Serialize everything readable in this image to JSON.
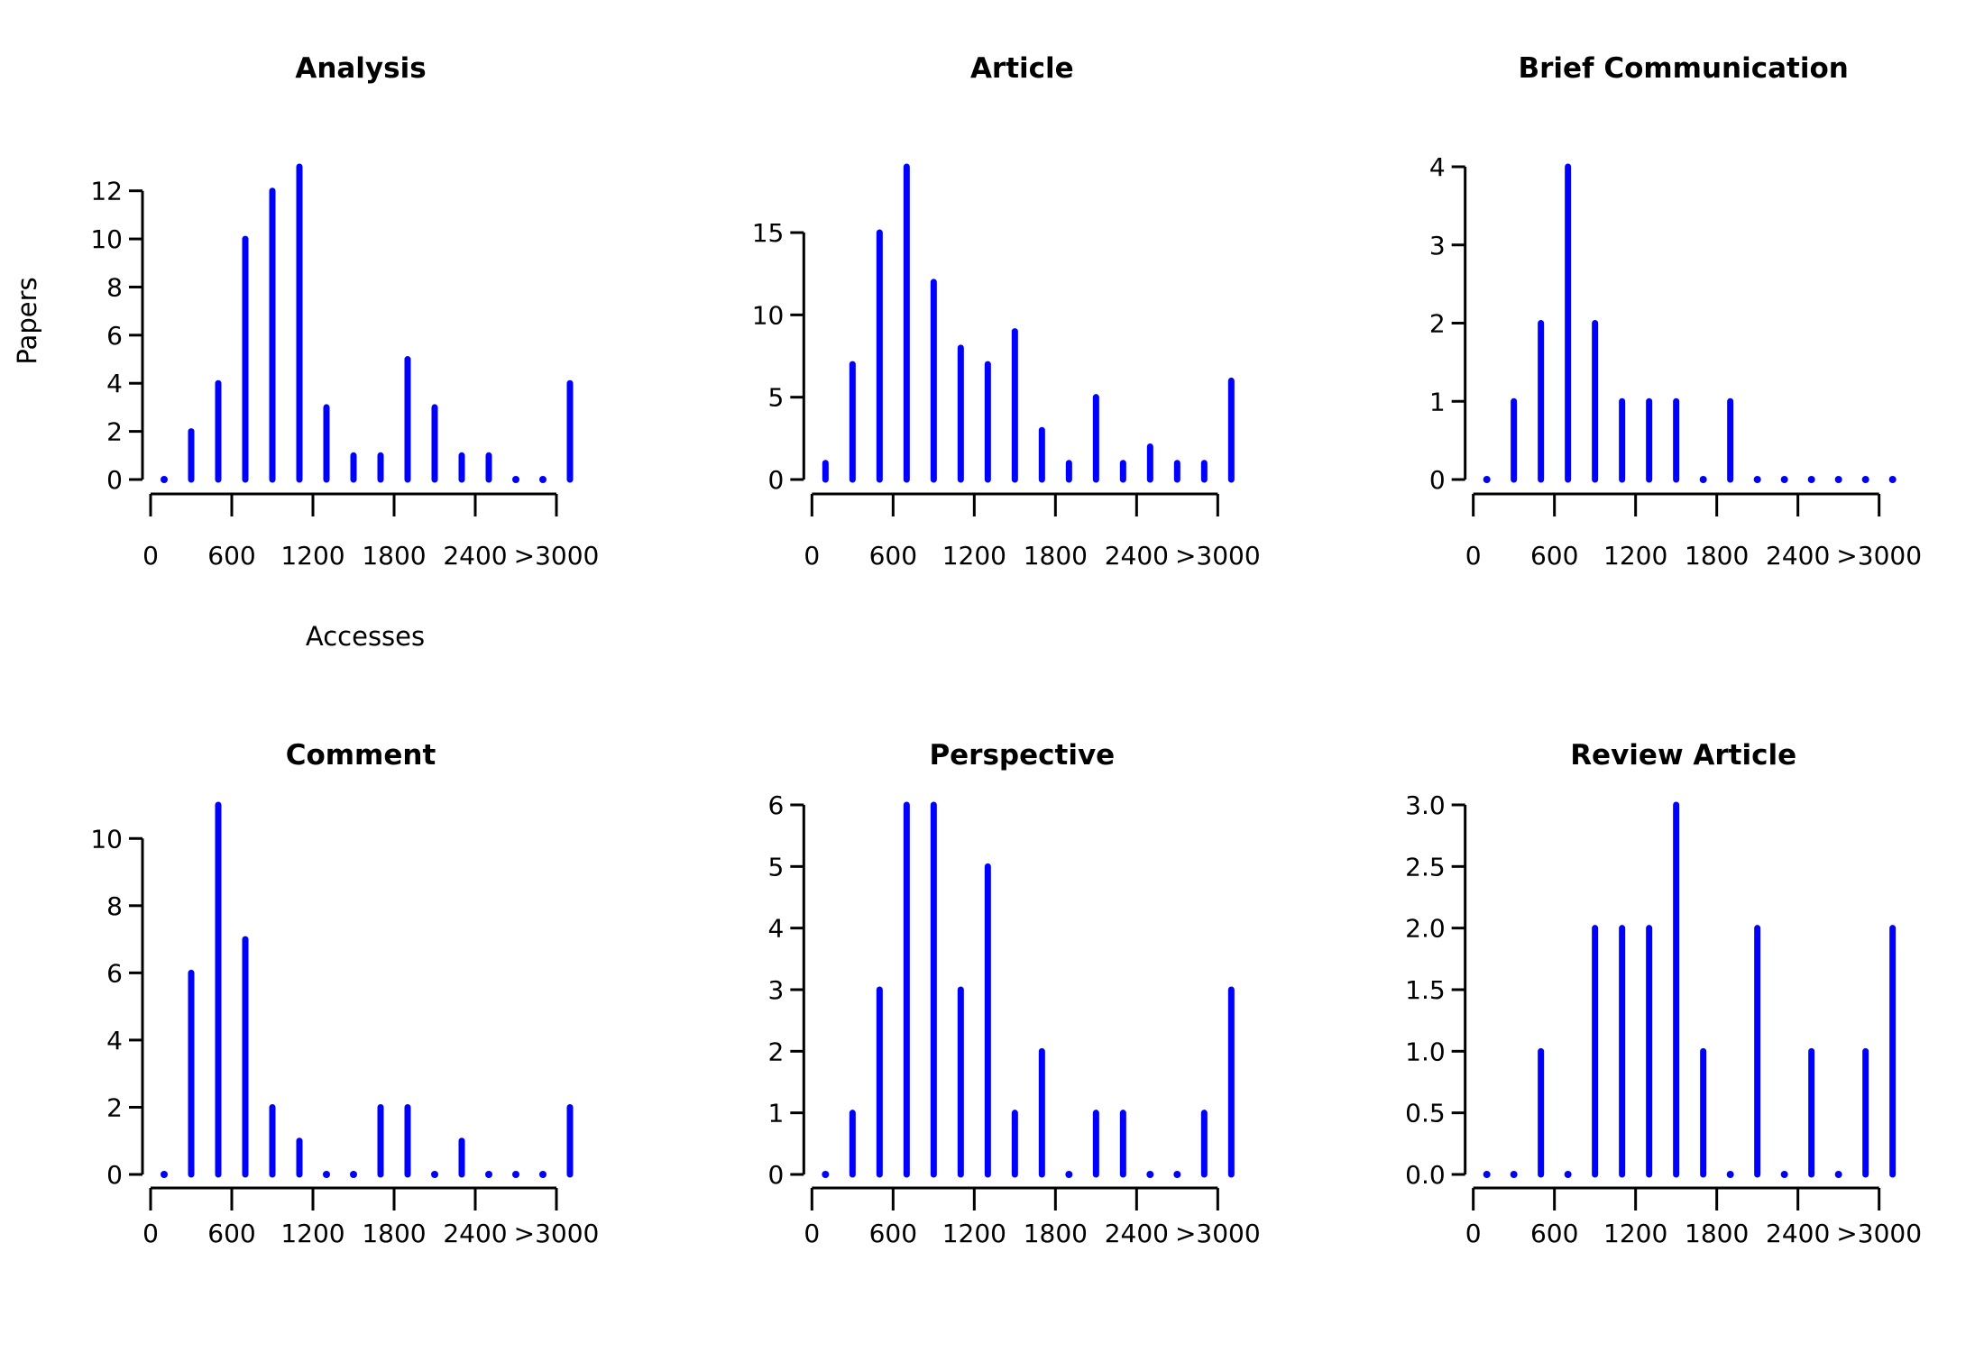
{
  "figure": {
    "ylabel": "Papers",
    "xlabel": "Accesses",
    "background": "#ffffff",
    "spike_color": "#0000ff",
    "axis_color": "#000000"
  },
  "chart_data": [
    {
      "type": "bar",
      "title": "Analysis",
      "x_bin_midpoints": [
        100,
        300,
        500,
        700,
        900,
        1100,
        1300,
        1500,
        1700,
        1900,
        2100,
        2300,
        2500,
        2700,
        2900,
        3100
      ],
      "values": [
        0,
        2,
        4,
        10,
        12,
        13,
        3,
        1,
        1,
        5,
        3,
        1,
        1,
        0,
        0,
        4
      ],
      "ylim": [
        0,
        13
      ],
      "yticks": [
        0,
        2,
        4,
        6,
        8,
        10,
        12
      ],
      "ytick_labels": [
        "0",
        "2",
        "4",
        "6",
        "8",
        "10",
        "12"
      ],
      "xticks": [
        0,
        600,
        1200,
        1800,
        2400,
        3000
      ],
      "xtick_labels": [
        "0",
        "600",
        "1200",
        "1800",
        "2400",
        ">3000"
      ]
    },
    {
      "type": "bar",
      "title": "Article",
      "x_bin_midpoints": [
        100,
        300,
        500,
        700,
        900,
        1100,
        1300,
        1500,
        1700,
        1900,
        2100,
        2300,
        2500,
        2700,
        2900,
        3100
      ],
      "values": [
        1,
        7,
        15,
        19,
        12,
        8,
        7,
        9,
        3,
        1,
        5,
        1,
        2,
        1,
        1,
        6
      ],
      "ylim": [
        0,
        19
      ],
      "yticks": [
        0,
        5,
        10,
        15
      ],
      "ytick_labels": [
        "0",
        "5",
        "10",
        "15"
      ],
      "xticks": [
        0,
        600,
        1200,
        1800,
        2400,
        3000
      ],
      "xtick_labels": [
        "0",
        "600",
        "1200",
        "1800",
        "2400",
        ">3000"
      ]
    },
    {
      "type": "bar",
      "title": "Brief Communication",
      "x_bin_midpoints": [
        100,
        300,
        500,
        700,
        900,
        1100,
        1300,
        1500,
        1700,
        1900,
        2100,
        2300,
        2500,
        2700,
        2900,
        3100
      ],
      "values": [
        0,
        1,
        2,
        4,
        2,
        1,
        1,
        1,
        0,
        1,
        0,
        0,
        0,
        0,
        0,
        0
      ],
      "ylim": [
        0,
        4
      ],
      "yticks": [
        0,
        1,
        2,
        3,
        4
      ],
      "ytick_labels": [
        "0",
        "1",
        "2",
        "3",
        "4"
      ],
      "xticks": [
        0,
        600,
        1200,
        1800,
        2400,
        3000
      ],
      "xtick_labels": [
        "0",
        "600",
        "1200",
        "1800",
        "2400",
        ">3000"
      ]
    },
    {
      "type": "bar",
      "title": "Comment",
      "x_bin_midpoints": [
        100,
        300,
        500,
        700,
        900,
        1100,
        1300,
        1500,
        1700,
        1900,
        2100,
        2300,
        2500,
        2700,
        2900,
        3100
      ],
      "values": [
        0,
        6,
        11,
        7,
        2,
        1,
        0,
        0,
        2,
        2,
        0,
        1,
        0,
        0,
        0,
        2
      ],
      "ylim": [
        0,
        11
      ],
      "yticks": [
        0,
        2,
        4,
        6,
        8,
        10
      ],
      "ytick_labels": [
        "0",
        "2",
        "4",
        "6",
        "8",
        "10"
      ],
      "xticks": [
        0,
        600,
        1200,
        1800,
        2400,
        3000
      ],
      "xtick_labels": [
        "0",
        "600",
        "1200",
        "1800",
        "2400",
        ">3000"
      ]
    },
    {
      "type": "bar",
      "title": "Perspective",
      "x_bin_midpoints": [
        100,
        300,
        500,
        700,
        900,
        1100,
        1300,
        1500,
        1700,
        1900,
        2100,
        2300,
        2500,
        2700,
        2900,
        3100
      ],
      "values": [
        0,
        1,
        3,
        6,
        6,
        3,
        5,
        1,
        2,
        0,
        1,
        1,
        0,
        0,
        1,
        3
      ],
      "ylim": [
        0,
        6
      ],
      "yticks": [
        0,
        1,
        2,
        3,
        4,
        5,
        6
      ],
      "ytick_labels": [
        "0",
        "1",
        "2",
        "3",
        "4",
        "5",
        "6"
      ],
      "xticks": [
        0,
        600,
        1200,
        1800,
        2400,
        3000
      ],
      "xtick_labels": [
        "0",
        "600",
        "1200",
        "1800",
        "2400",
        ">3000"
      ]
    },
    {
      "type": "bar",
      "title": "Review Article",
      "x_bin_midpoints": [
        100,
        300,
        500,
        700,
        900,
        1100,
        1300,
        1500,
        1700,
        1900,
        2100,
        2300,
        2500,
        2700,
        2900,
        3100
      ],
      "values": [
        0,
        0,
        1,
        0,
        2,
        2,
        2,
        3,
        1,
        0,
        2,
        0,
        1,
        0,
        1,
        2
      ],
      "ylim": [
        0,
        3
      ],
      "yticks": [
        0,
        0.5,
        1,
        1.5,
        2,
        2.5,
        3
      ],
      "ytick_labels": [
        "0.0",
        "0.5",
        "1.0",
        "1.5",
        "2.0",
        "2.5",
        "3.0"
      ],
      "xticks": [
        0,
        600,
        1200,
        1800,
        2400,
        3000
      ],
      "xtick_labels": [
        "0",
        "600",
        "1200",
        "1800",
        "2400",
        ">3000"
      ]
    }
  ]
}
